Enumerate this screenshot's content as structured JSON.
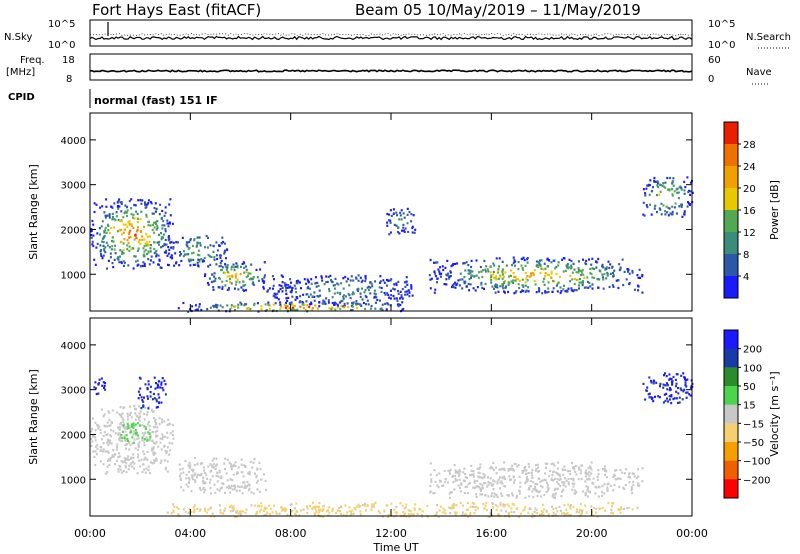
{
  "header": {
    "title": "Fort Hays East (fitACF)",
    "beam_info": "Beam 05  10/May/2019 – 11/May/2019"
  },
  "strips": {
    "nsky_label": "N.Sky",
    "nsky_ticks": [
      "10^5",
      "10^0"
    ],
    "nsearch_label": "N.Search",
    "nsearch_ticks": [
      "10^5",
      "10^0"
    ],
    "freq_label": "Freq.",
    "freq_unit": "[MHz]",
    "freq_ticks": [
      "18",
      "8"
    ],
    "nave_label": "Nave",
    "nave_ticks": [
      "60",
      "0"
    ],
    "cpid_label": "CPID",
    "cpid_value": "normal (fast) 151 IF"
  },
  "chart_data": [
    {
      "type": "heatmap",
      "name": "power",
      "ylabel": "Slant Range [km]",
      "xlabel": "Time UT",
      "x_ticks": [
        "00:00",
        "04:00",
        "08:00",
        "12:00",
        "16:00",
        "20:00",
        "00:00"
      ],
      "xlim_hours": [
        0,
        24
      ],
      "y_ticks": [
        1000,
        2000,
        3000,
        4000
      ],
      "ylim": [
        180,
        4600
      ],
      "colorbar": {
        "label": "Power [dB]",
        "ticks": [
          "4",
          "8",
          "12",
          "16",
          "20",
          "24",
          "28"
        ],
        "range": [
          0,
          30
        ],
        "colors": [
          "#1a1aff",
          "#2d58a8",
          "#3c8c7a",
          "#53a853",
          "#e8c800",
          "#f0a000",
          "#f07000",
          "#e82000"
        ]
      },
      "echo_regions": [
        {
          "t": [
            0.0,
            3.3
          ],
          "r": [
            1150,
            2700
          ],
          "peak_db": 26
        },
        {
          "t": [
            3.0,
            5.5
          ],
          "r": [
            1200,
            1900
          ],
          "peak_db": 14
        },
        {
          "t": [
            4.5,
            7.0
          ],
          "r": [
            650,
            1300
          ],
          "peak_db": 22
        },
        {
          "t": [
            7.0,
            13.0
          ],
          "r": [
            300,
            1000
          ],
          "peak_db": 10
        },
        {
          "t": [
            11.8,
            13.0
          ],
          "r": [
            1900,
            2500
          ],
          "peak_db": 10
        },
        {
          "t": [
            13.5,
            22.0
          ],
          "r": [
            600,
            1400
          ],
          "peak_db": 22
        },
        {
          "t": [
            22.0,
            24.0
          ],
          "r": [
            2300,
            3200
          ],
          "peak_db": 20
        },
        {
          "t": [
            3.5,
            13.0
          ],
          "r": [
            180,
            400
          ],
          "peak_db": 28
        }
      ]
    },
    {
      "type": "heatmap",
      "name": "velocity",
      "ylabel": "Slant Range [km]",
      "xlabel": "Time UT",
      "x_ticks": [
        "00:00",
        "04:00",
        "08:00",
        "12:00",
        "16:00",
        "20:00",
        "00:00"
      ],
      "xlim_hours": [
        0,
        24
      ],
      "y_ticks": [
        1000,
        2000,
        3000,
        4000
      ],
      "ylim": [
        180,
        4600
      ],
      "colorbar": {
        "label": "Velocity [m s⁻¹]",
        "ticks": [
          "200",
          "100",
          "50",
          "15",
          "−15",
          "−50",
          "−100",
          "−200"
        ],
        "range": [
          -250,
          250
        ],
        "colors": [
          "#ff0000",
          "#f06000",
          "#f5a000",
          "#f5d070",
          "#c8c8c8",
          "#4cd44c",
          "#2c8c2c",
          "#1a3aa8",
          "#1a1aff"
        ]
      },
      "echo_regions": [
        {
          "t": [
            0.0,
            3.3
          ],
          "r": [
            1150,
            2700
          ],
          "vel": 0
        },
        {
          "t": [
            0.0,
            0.6
          ],
          "r": [
            2900,
            3300
          ],
          "vel": 200
        },
        {
          "t": [
            1.8,
            3.0
          ],
          "r": [
            2600,
            3300
          ],
          "vel": 200
        },
        {
          "t": [
            1.2,
            2.4
          ],
          "r": [
            1800,
            2300
          ],
          "vel": 60
        },
        {
          "t": [
            3.5,
            7.0
          ],
          "r": [
            700,
            1500
          ],
          "vel": 0
        },
        {
          "t": [
            13.5,
            22.0
          ],
          "r": [
            600,
            1400
          ],
          "vel": 0
        },
        {
          "t": [
            22.0,
            24.0
          ],
          "r": [
            2700,
            3400
          ],
          "vel": 200
        },
        {
          "t": [
            3.0,
            22.0
          ],
          "r": [
            180,
            500
          ],
          "vel": -40
        }
      ]
    }
  ],
  "footer": {
    "xlabel": "Time UT"
  }
}
